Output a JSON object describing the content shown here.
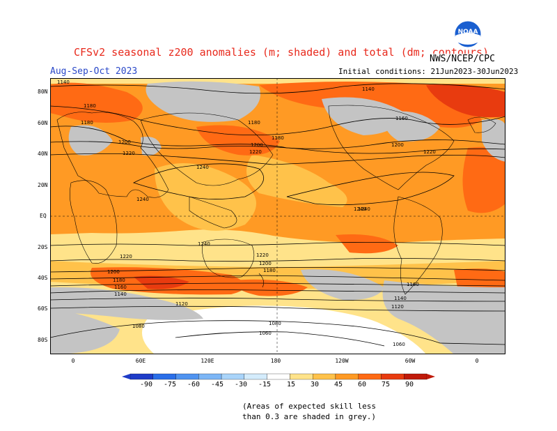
{
  "header": {
    "title": "CFSv2 seasonal z200 anomalies (m; shaded) and total (dm; contours)",
    "season": "Aug-Sep-Oct 2023",
    "initial_conditions": "Initial conditions: 21Jun2023-30Jun2023",
    "agency": "NWS/NCEP/CPC",
    "logo_text": "NOAA"
  },
  "axes": {
    "lat_labels": [
      "80N",
      "60N",
      "40N",
      "20N",
      "EQ",
      "20S",
      "40S",
      "60S",
      "80S"
    ],
    "lon_labels": [
      "0",
      "60E",
      "120E",
      "180",
      "120W",
      "60W",
      "0"
    ]
  },
  "contours": {
    "labels": [
      "1140",
      "1180",
      "1180",
      "1200",
      "1220",
      "1240",
      "1240",
      "1240",
      "1180",
      "1200",
      "1220",
      "1140",
      "1160",
      "1180",
      "1200",
      "1220",
      "1240",
      "1240",
      "1220",
      "1200",
      "1180",
      "1160",
      "1140",
      "1120",
      "1080",
      "1220",
      "1200",
      "1180",
      "1160",
      "1140",
      "1120",
      "1080",
      "1060",
      "1060"
    ]
  },
  "colorbar": {
    "tick_labels": [
      "-90",
      "-75",
      "-60",
      "-45",
      "-30",
      "-15",
      "15",
      "30",
      "45",
      "60",
      "75",
      "90"
    ],
    "colors": [
      "#1e3cc8",
      "#2a6ee8",
      "#4f93f0",
      "#7cb6f6",
      "#a9d4fa",
      "#d4ecfc",
      "#ffffff",
      "#ffe38a",
      "#ffc24a",
      "#ff9a24",
      "#ff6a14",
      "#e83b0f",
      "#c01a0a"
    ]
  },
  "note": {
    "line1": "(Areas of expected skill less",
    "line2": "than 0.3 are shaded in grey.)"
  },
  "palette": {
    "grey": "#c4c4c4",
    "light_yellow": "#ffe38a",
    "yellow": "#ffc24a",
    "orange": "#ff9a24",
    "dark_orange": "#ff6a14",
    "red": "#e83b0f"
  }
}
